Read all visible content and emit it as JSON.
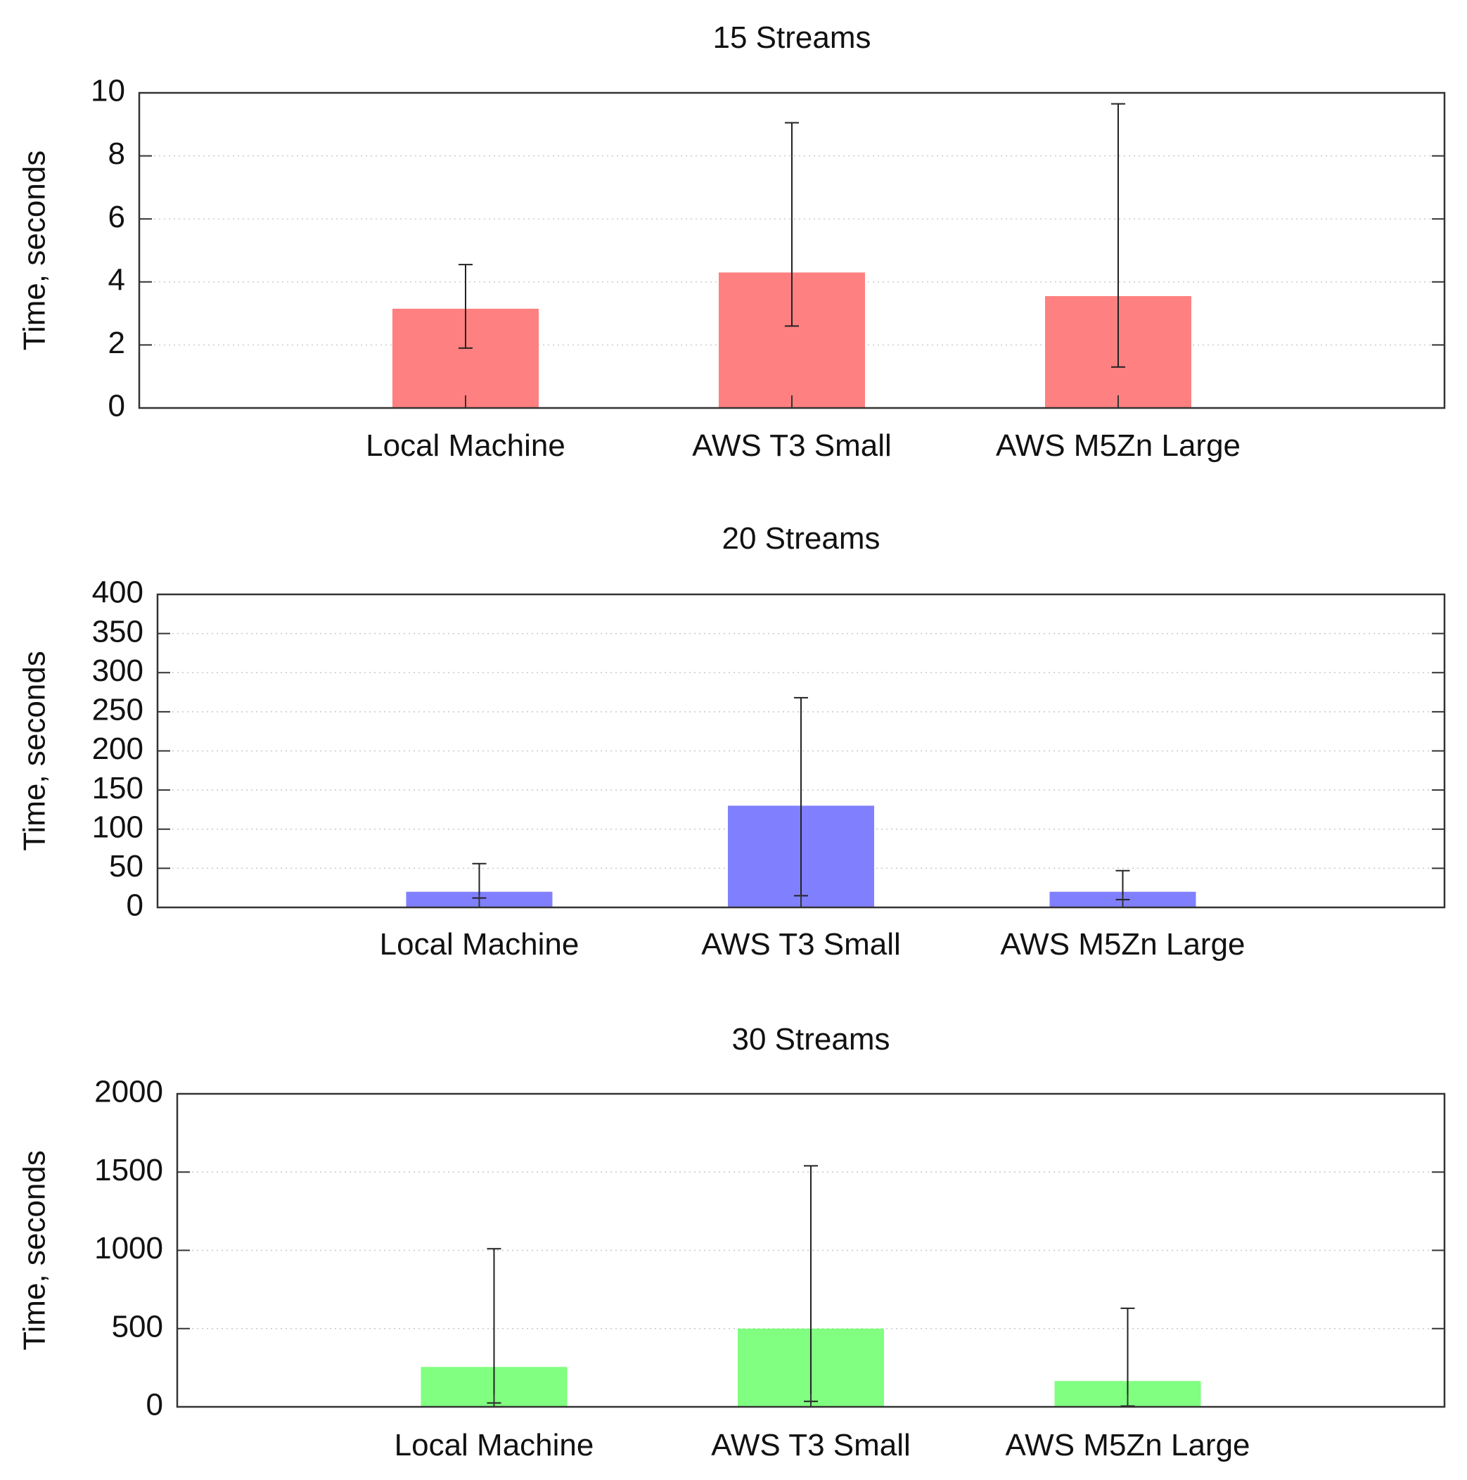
{
  "chart_data": [
    {
      "type": "bar",
      "title": "15 Streams",
      "xlabel": "",
      "ylabel": "Time, seconds",
      "categories": [
        "Local Machine",
        "AWS T3 Small",
        "AWS M5Zn Large"
      ],
      "values": [
        3.15,
        4.3,
        3.55
      ],
      "error_low": [
        1.9,
        2.6,
        1.3
      ],
      "error_high": [
        4.55,
        9.05,
        9.65
      ],
      "ylim": [
        0,
        10
      ],
      "yticks": [
        0,
        2,
        4,
        6,
        8,
        10
      ],
      "grid": true,
      "color": "#ff8080"
    },
    {
      "type": "bar",
      "title": "20 Streams",
      "xlabel": "",
      "ylabel": "Time, seconds",
      "categories": [
        "Local Machine",
        "AWS T3 Small",
        "AWS M5Zn Large"
      ],
      "values": [
        20,
        130,
        20
      ],
      "error_low": [
        12,
        15,
        10
      ],
      "error_high": [
        56,
        268,
        47
      ],
      "ylim": [
        0,
        400
      ],
      "yticks": [
        0,
        50,
        100,
        150,
        200,
        250,
        300,
        350,
        400
      ],
      "grid": true,
      "color": "#8080ff"
    },
    {
      "type": "bar",
      "title": "30 Streams",
      "xlabel": "",
      "ylabel": "Time, seconds",
      "categories": [
        "Local Machine",
        "AWS T3 Small",
        "AWS M5Zn Large"
      ],
      "values": [
        255,
        500,
        165
      ],
      "error_low": [
        25,
        35,
        5
      ],
      "error_high": [
        1010,
        1540,
        630
      ],
      "ylim": [
        0,
        2000
      ],
      "yticks": [
        0,
        500,
        1000,
        1500,
        2000
      ],
      "grid": true,
      "color": "#80ff80"
    }
  ]
}
